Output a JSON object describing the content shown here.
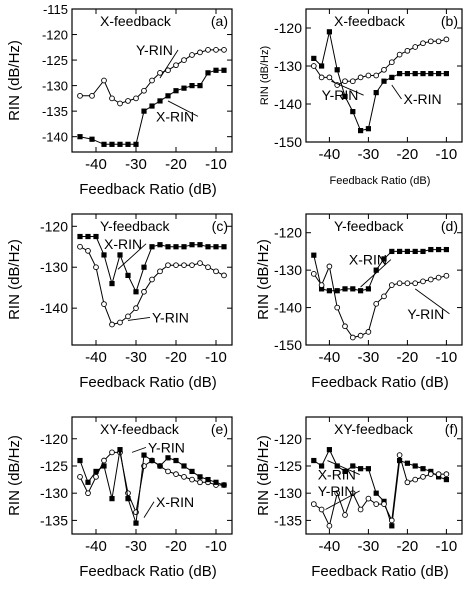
{
  "chart_data": [
    {
      "type": "line",
      "panel_label": "(a)",
      "title": "X-feedback",
      "xlabel": "Feedback Ratio (dB)",
      "ylabel": "RIN (dB/Hz)",
      "xlim": [
        -46,
        -6
      ],
      "ylim": [
        -143,
        -115
      ],
      "xticks": [
        -40,
        -30,
        -20,
        -10
      ],
      "yticks": [
        -115,
        -120,
        -125,
        -130,
        -135,
        -140
      ],
      "series": [
        {
          "name": "Y-RIN",
          "marker": "circle",
          "x": [
            -44,
            -41,
            -38,
            -36,
            -34,
            -32,
            -30,
            -28,
            -26,
            -24,
            -22,
            -20,
            -18,
            -16,
            -14,
            -12,
            -10,
            -8
          ],
          "y": [
            -132,
            -132,
            -129,
            -132.5,
            -133.5,
            -133,
            -132.5,
            -131,
            -129,
            -127.5,
            -127,
            -126,
            -125,
            -124,
            -123.5,
            -123,
            -123,
            -123
          ]
        },
        {
          "name": "X-RIN",
          "marker": "square",
          "x": [
            -44,
            -41,
            -38,
            -36,
            -34,
            -32,
            -30,
            -28,
            -26,
            -24,
            -22,
            -20,
            -18,
            -16,
            -14,
            -12,
            -10,
            -8
          ],
          "y": [
            -140,
            -140.5,
            -141.5,
            -141.5,
            -141.5,
            -141.5,
            -141.5,
            -135,
            -134,
            -133,
            -132,
            -131,
            -130.5,
            -130,
            -130,
            -127.5,
            -127,
            -127
          ]
        }
      ],
      "annotations": [
        {
          "text": "Y-RIN",
          "series": "Y-RIN",
          "x": -30,
          "y": -124,
          "tx": -24,
          "ty": -128.5
        },
        {
          "text": "X-RIN",
          "series": "X-RIN",
          "x": -25,
          "y": -137,
          "tx": -22,
          "ty": -133
        }
      ]
    },
    {
      "type": "line",
      "panel_label": "(b)",
      "title": "X-feedback",
      "xlabel": "Feedback Ratio (dB)",
      "ylabel": "RIN (dB/Hz)",
      "xlim": [
        -46,
        -6
      ],
      "ylim": [
        -150,
        -115
      ],
      "xticks": [
        -40,
        -30,
        -20,
        -10
      ],
      "yticks": [
        -120,
        -130,
        -140,
        -150
      ],
      "series": [
        {
          "name": "Y-RIN",
          "marker": "circle",
          "x": [
            -44,
            -42,
            -40,
            -38,
            -36,
            -34,
            -32,
            -30,
            -28,
            -26,
            -24,
            -22,
            -20,
            -18,
            -16,
            -14,
            -12,
            -10
          ],
          "y": [
            -130,
            -133,
            -133,
            -135,
            -134,
            -134,
            -133,
            -132.5,
            -132.5,
            -131,
            -129,
            -127,
            -126,
            -125,
            -124,
            -123.5,
            -123.5,
            -123
          ]
        },
        {
          "name": "X-RIN",
          "marker": "square",
          "x": [
            -44,
            -42,
            -40,
            -38,
            -36,
            -34,
            -32,
            -30,
            -28,
            -26,
            -24,
            -22,
            -20,
            -18,
            -16,
            -14,
            -12,
            -10
          ],
          "y": [
            -128,
            -130,
            -121,
            -131,
            -138,
            -142,
            -147,
            -146.5,
            -137,
            -134,
            -133,
            -132,
            -132,
            -132,
            -132,
            -132,
            -132,
            -132
          ]
        }
      ],
      "annotations": [
        {
          "text": "Y-RIN",
          "series": "Y-RIN",
          "x": -42,
          "y": -139,
          "tx": -39.5,
          "ty": -134
        },
        {
          "text": "X-RIN",
          "series": "X-RIN",
          "x": -21,
          "y": -140,
          "tx": -24,
          "ty": -135
        }
      ]
    },
    {
      "type": "line",
      "panel_label": "(c)",
      "title": "Y-feedback",
      "xlabel": "Feedback Ratio (dB)",
      "ylabel": "RIN (dB/Hz)",
      "xlim": [
        -46,
        -6
      ],
      "ylim": [
        -149,
        -117
      ],
      "xticks": [
        -40,
        -30,
        -20,
        -10
      ],
      "yticks": [
        -120,
        -130,
        -140
      ],
      "series": [
        {
          "name": "X-RIN",
          "marker": "square",
          "x": [
            -44,
            -42,
            -40,
            -38,
            -36,
            -34,
            -32,
            -30,
            -28,
            -26,
            -24,
            -22,
            -20,
            -18,
            -16,
            -14,
            -12,
            -10,
            -8
          ],
          "y": [
            -122.5,
            -122.5,
            -122.5,
            -127,
            -134,
            -127,
            -132,
            -136,
            -130,
            -125,
            -124.5,
            -125,
            -125,
            -125,
            -124.5,
            -124.5,
            -125,
            -125,
            -125
          ]
        },
        {
          "name": "Y-RIN",
          "marker": "circle",
          "x": [
            -44,
            -42,
            -40,
            -38,
            -36,
            -34,
            -32,
            -30,
            -28,
            -26,
            -24,
            -22,
            -20,
            -18,
            -16,
            -14,
            -12,
            -10,
            -8
          ],
          "y": [
            -125,
            -126,
            -130,
            -139,
            -144,
            -143.5,
            -142,
            -140,
            -136,
            -133,
            -131,
            -129.5,
            -129.5,
            -129.5,
            -129.5,
            -129,
            -130,
            -131,
            -132
          ]
        }
      ],
      "annotations": [
        {
          "text": "X-RIN",
          "series": "X-RIN",
          "x": -38,
          "y": -125.5,
          "tx": -34.5,
          "ty": -130.5
        },
        {
          "text": "Y-RIN",
          "series": "Y-RIN",
          "x": -26,
          "y": -143.5,
          "tx": -32,
          "ty": -143
        }
      ]
    },
    {
      "type": "line",
      "panel_label": "(d)",
      "title": "Y-feedback",
      "xlabel": "Feedback Ratio (dB)",
      "ylabel": "RIN (dB/Hz)",
      "xlim": [
        -46,
        -6
      ],
      "ylim": [
        -150,
        -115
      ],
      "xticks": [
        -40,
        -30,
        -20,
        -10
      ],
      "yticks": [
        -120,
        -130,
        -140,
        -150
      ],
      "series": [
        {
          "name": "X-RIN",
          "marker": "square",
          "x": [
            -44,
            -42,
            -40,
            -38,
            -36,
            -34,
            -32,
            -30,
            -28,
            -26,
            -24,
            -22,
            -20,
            -18,
            -16,
            -14,
            -12,
            -10
          ],
          "y": [
            -126,
            -135,
            -135.5,
            -135.5,
            -135,
            -135,
            -135.5,
            -135,
            -130,
            -127,
            -125,
            -125,
            -125,
            -125,
            -125,
            -124.5,
            -124.5,
            -124.5
          ]
        },
        {
          "name": "Y-RIN",
          "marker": "circle",
          "x": [
            -44,
            -42,
            -40,
            -38,
            -36,
            -34,
            -32,
            -30,
            -28,
            -26,
            -24,
            -22,
            -20,
            -18,
            -16,
            -14,
            -12,
            -10
          ],
          "y": [
            -131,
            -134,
            -129,
            -140,
            -145,
            -148,
            -147.5,
            -146.5,
            -139,
            -137,
            -134,
            -133.5,
            -133.5,
            -133.5,
            -133,
            -132.5,
            -132,
            -131.5
          ]
        }
      ],
      "annotations": [
        {
          "text": "X-RIN",
          "series": "X-RIN",
          "x": -35,
          "y": -128.5,
          "tx": -32,
          "ty": -134.5
        },
        {
          "text": "Y-RIN",
          "series": "Y-RIN",
          "x": -20,
          "y": -143,
          "tx": -18,
          "ty": -135
        }
      ]
    },
    {
      "type": "line",
      "panel_label": "(e)",
      "title": "XY-feedback",
      "xlabel": "Feedback Ratio (dB)",
      "ylabel": "RIN (dB/Hz)",
      "xlim": [
        -46,
        -6
      ],
      "ylim": [
        -137.5,
        -116
      ],
      "xticks": [
        -40,
        -30,
        -20,
        -10
      ],
      "yticks": [
        -120,
        -125,
        -130,
        -135
      ],
      "series": [
        {
          "name": "Y-RIN",
          "marker": "circle",
          "x": [
            -44,
            -42,
            -40,
            -38,
            -36,
            -34,
            -32,
            -30,
            -28,
            -26,
            -24,
            -22,
            -20,
            -18,
            -16,
            -14,
            -12,
            -10,
            -8
          ],
          "y": [
            -127,
            -130,
            -127,
            -124,
            -122.5,
            -122.5,
            -130,
            -133.5,
            -125,
            -124,
            -125,
            -126,
            -126.5,
            -127,
            -127.5,
            -128,
            -128,
            -128.5,
            -128.5
          ]
        },
        {
          "name": "X-RIN",
          "marker": "square",
          "x": [
            -44,
            -42,
            -40,
            -38,
            -36,
            -34,
            -32,
            -30,
            -28,
            -26,
            -24,
            -22,
            -20,
            -18,
            -16,
            -14,
            -12,
            -10,
            -8
          ],
          "y": [
            -124,
            -128,
            -126,
            -125,
            -131,
            -122,
            -131,
            -135.5,
            -123,
            -124,
            -125,
            -123.5,
            -124,
            -125,
            -126,
            -127,
            -127.5,
            -128,
            -128.5
          ]
        }
      ],
      "annotations": [
        {
          "text": "Y-RIN",
          "series": "Y-RIN",
          "x": -27,
          "y": -122.5,
          "tx": -31,
          "ty": -122.5
        },
        {
          "text": "X-RIN",
          "series": "X-RIN",
          "x": -25,
          "y": -132.5,
          "tx": -28,
          "ty": -134.5
        }
      ]
    },
    {
      "type": "line",
      "panel_label": "(f)",
      "title": "XY-feedback",
      "xlabel": "Feedback Ratio (dB)",
      "ylabel": "RIN (dB/Hz)",
      "xlim": [
        -46,
        -6
      ],
      "ylim": [
        -137.5,
        -116
      ],
      "xticks": [
        -40,
        -30,
        -20,
        -10
      ],
      "yticks": [
        -120,
        -125,
        -130,
        -135
      ],
      "series": [
        {
          "name": "X-RIN",
          "marker": "square",
          "x": [
            -44,
            -42,
            -40,
            -38,
            -36,
            -34,
            -32,
            -30,
            -28,
            -26,
            -24,
            -22,
            -20,
            -18,
            -16,
            -14,
            -12,
            -10
          ],
          "y": [
            -124,
            -125,
            -122,
            -125,
            -126,
            -125,
            -125.5,
            -125.5,
            -130,
            -131.5,
            -136,
            -124,
            -124.5,
            -125,
            -125.5,
            -126,
            -127,
            -127.5
          ]
        },
        {
          "name": "Y-RIN",
          "marker": "circle",
          "x": [
            -44,
            -42,
            -40,
            -38,
            -36,
            -34,
            -32,
            -30,
            -28,
            -26,
            -24,
            -22,
            -20,
            -18,
            -16,
            -14,
            -12,
            -10
          ],
          "y": [
            -132,
            -133,
            -136,
            -130,
            -134,
            -130,
            -133,
            -131,
            -132,
            -132,
            -135,
            -123,
            -128,
            -127.5,
            -127,
            -126.5,
            -126.5,
            -126.5
          ]
        }
      ],
      "annotations": [
        {
          "text": "X-RIN",
          "series": "X-RIN",
          "x": -43,
          "y": -127.5,
          "tx": -40.5,
          "ty": -124
        },
        {
          "text": "Y-RIN",
          "series": "Y-RIN",
          "x": -43,
          "y": -130.5,
          "tx": -41,
          "ty": -133
        }
      ]
    }
  ]
}
